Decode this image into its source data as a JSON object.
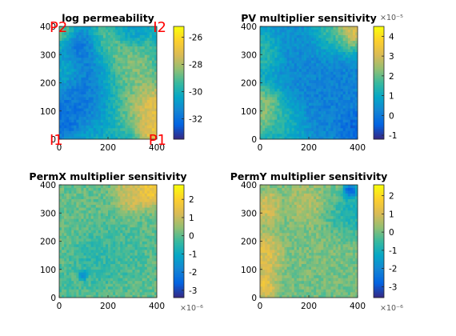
{
  "figure": {
    "colormap": "parula",
    "colormap_stops": [
      "#352a87",
      "#0363e1",
      "#1485d4",
      "#06a7c6",
      "#38b99e",
      "#92bf73",
      "#d9ba56",
      "#fcce2e",
      "#f9fb0e"
    ]
  },
  "chart_data": [
    {
      "type": "heatmap",
      "title": "log permeability",
      "xlim": [
        0,
        400
      ],
      "ylim": [
        0,
        400
      ],
      "xticks": [
        "0",
        "200",
        "400"
      ],
      "yticks": [
        "0",
        "100",
        "200",
        "300",
        "400"
      ],
      "clim": [
        -33.5,
        -25.2
      ],
      "colorbar_ticks": [
        "-26",
        "-28",
        "-30",
        "-32"
      ],
      "colorbar_tick_values": [
        -26,
        -28,
        -30,
        -32
      ],
      "colorbar_exponent": "",
      "annotations": [
        {
          "text": "P2",
          "x": 0,
          "y": 400
        },
        {
          "text": "I2",
          "x": 400,
          "y": 400
        },
        {
          "text": "I1",
          "x": 0,
          "y": 0
        },
        {
          "text": "P1",
          "x": 400,
          "y": 0
        }
      ],
      "field_features": [
        {
          "x": 10,
          "y": 370,
          "w": 40,
          "v": 0.72
        },
        {
          "x": 60,
          "y": 330,
          "w": 40,
          "v": 0.12
        },
        {
          "x": 100,
          "y": 255,
          "w": 70,
          "v": 0.05
        },
        {
          "x": 120,
          "y": 160,
          "w": 60,
          "v": 0.12
        },
        {
          "x": 230,
          "y": 330,
          "w": 60,
          "v": 0.7
        },
        {
          "x": 300,
          "y": 260,
          "w": 50,
          "v": 0.65
        },
        {
          "x": 330,
          "y": 140,
          "w": 60,
          "v": 0.7
        },
        {
          "x": 390,
          "y": 110,
          "w": 40,
          "v": 0.95
        },
        {
          "x": 380,
          "y": 30,
          "w": 30,
          "v": 0.9
        },
        {
          "x": 20,
          "y": 70,
          "w": 40,
          "v": 0.12
        },
        {
          "x": 40,
          "y": 250,
          "w": 40,
          "v": 0.6
        },
        {
          "x": 280,
          "y": 380,
          "w": 40,
          "v": 0.2
        },
        {
          "x": 200,
          "y": 200,
          "w": 70,
          "v": 0.5
        }
      ],
      "field_base": 0.4
    },
    {
      "type": "heatmap",
      "title": "PV multiplier sensitivity",
      "xlim": [
        0,
        400
      ],
      "ylim": [
        0,
        400
      ],
      "xticks": [
        "0",
        "200",
        "400"
      ],
      "yticks": [
        "0",
        "100",
        "200",
        "300",
        "400"
      ],
      "clim": [
        -1.2,
        4.5
      ],
      "colorbar_ticks": [
        "4",
        "3",
        "2",
        "1",
        "0",
        "-1"
      ],
      "colorbar_tick_values": [
        4,
        3,
        2,
        1,
        0,
        -1
      ],
      "colorbar_exponent": "×10⁻⁵",
      "annotations": [],
      "field_features": [
        {
          "x": 380,
          "y": 390,
          "w": 40,
          "v": 0.95
        },
        {
          "x": 300,
          "y": 380,
          "w": 50,
          "v": 0.6
        },
        {
          "x": 20,
          "y": 110,
          "w": 50,
          "v": 0.75
        },
        {
          "x": 20,
          "y": 300,
          "w": 40,
          "v": 0.55
        },
        {
          "x": 100,
          "y": 60,
          "w": 50,
          "v": 0.45
        },
        {
          "x": 390,
          "y": 40,
          "w": 40,
          "v": 0.08
        },
        {
          "x": 300,
          "y": 160,
          "w": 90,
          "v": 0.2
        },
        {
          "x": 180,
          "y": 260,
          "w": 100,
          "v": 0.26
        }
      ],
      "field_base": 0.34
    },
    {
      "type": "heatmap",
      "title": "PermX multiplier sensitivity",
      "xlim": [
        0,
        400
      ],
      "ylim": [
        0,
        400
      ],
      "xticks": [
        "0",
        "200",
        "400"
      ],
      "yticks": [
        "0",
        "100",
        "200",
        "300",
        "400"
      ],
      "clim": [
        -3.4,
        2.8
      ],
      "colorbar_ticks": [
        "2",
        "1",
        "0",
        "-1",
        "-2",
        "-3"
      ],
      "colorbar_tick_values": [
        2,
        1,
        0,
        -1,
        -2,
        -3
      ],
      "colorbar_exponent": "×10⁻⁶",
      "annotations": [],
      "field_features": [
        {
          "x": 370,
          "y": 385,
          "w": 30,
          "v": 0.92
        },
        {
          "x": 300,
          "y": 370,
          "w": 35,
          "v": 0.78
        },
        {
          "x": 95,
          "y": 80,
          "w": 10,
          "v": 0.02
        },
        {
          "x": 150,
          "y": 130,
          "w": 50,
          "v": 0.45
        },
        {
          "x": 40,
          "y": 40,
          "w": 40,
          "v": 0.52
        },
        {
          "x": 250,
          "y": 150,
          "w": 60,
          "v": 0.5
        }
      ],
      "field_base": 0.56
    },
    {
      "type": "heatmap",
      "title": "PermY multiplier sensitivity",
      "xlim": [
        0,
        400
      ],
      "ylim": [
        0,
        400
      ],
      "xticks": [
        "0",
        "200",
        "400"
      ],
      "yticks": [
        "0",
        "100",
        "200",
        "300",
        "400"
      ],
      "clim": [
        -3.6,
        2.6
      ],
      "colorbar_ticks": [
        "2",
        "1",
        "0",
        "-1",
        "-2",
        "-3"
      ],
      "colorbar_tick_values": [
        2,
        1,
        0,
        -1,
        -2,
        -3
      ],
      "colorbar_exponent": "×10⁻⁶",
      "annotations": [],
      "field_features": [
        {
          "x": 15,
          "y": 150,
          "w": 40,
          "v": 0.82
        },
        {
          "x": 25,
          "y": 320,
          "w": 30,
          "v": 0.78
        },
        {
          "x": 15,
          "y": 40,
          "w": 25,
          "v": 0.85
        },
        {
          "x": 190,
          "y": 330,
          "w": 40,
          "v": 0.7
        },
        {
          "x": 370,
          "y": 380,
          "w": 15,
          "v": 0.02
        },
        {
          "x": 380,
          "y": 300,
          "w": 30,
          "v": 0.35
        },
        {
          "x": 330,
          "y": 280,
          "w": 40,
          "v": 0.45
        },
        {
          "x": 250,
          "y": 200,
          "w": 70,
          "v": 0.6
        }
      ],
      "field_base": 0.58
    }
  ]
}
